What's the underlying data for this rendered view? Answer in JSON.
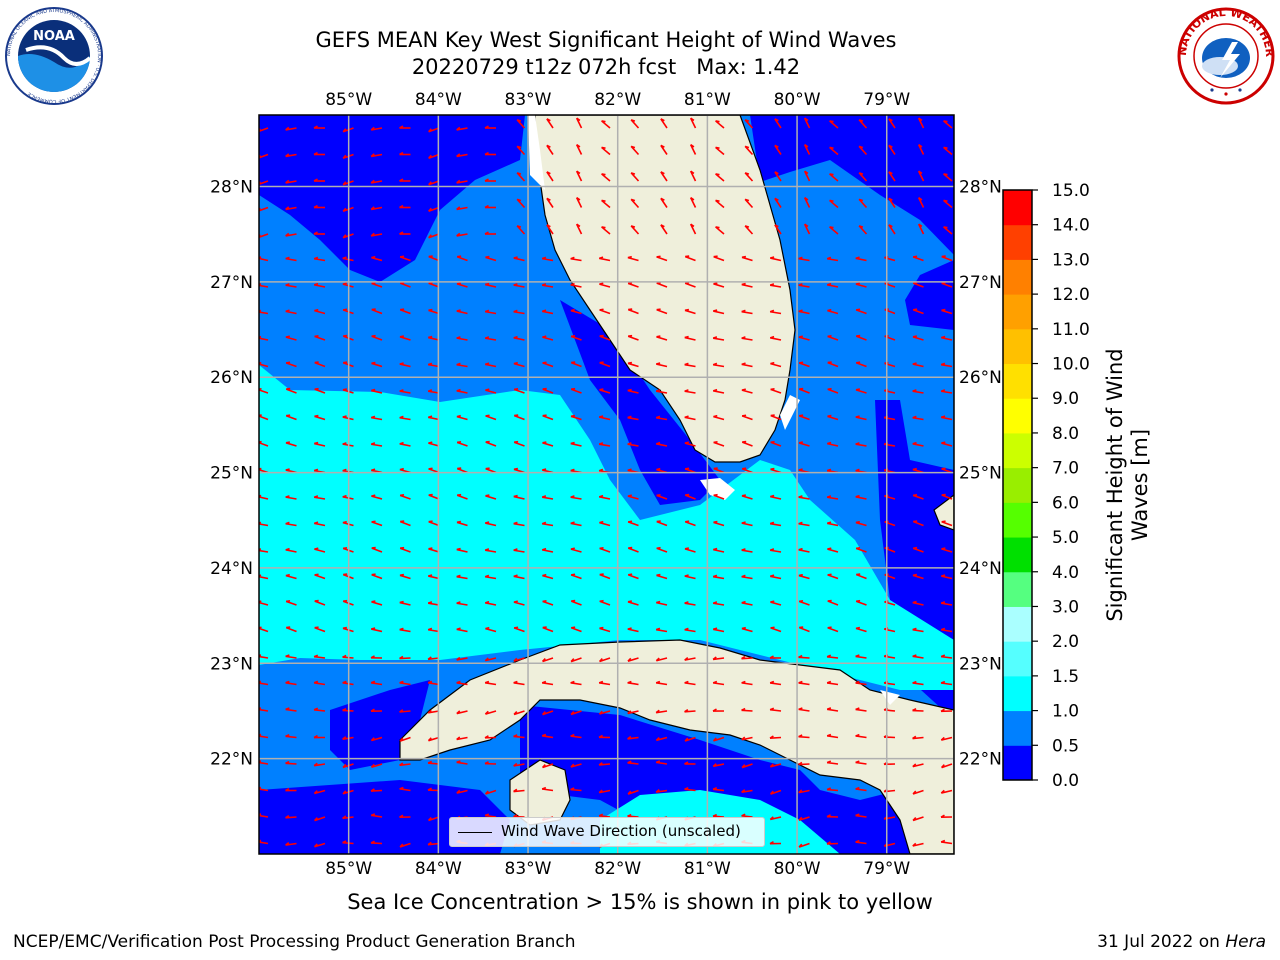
{
  "title_line1": "GEFS MEAN Key West Significant Height of Wind Waves",
  "title_line2": "20220729 t12z 072h fcst   Max: 1.42",
  "logos": {
    "left": {
      "name": "NOAA",
      "text": "NOAA",
      "ring_text": "NATIONAL OCEANIC AND ATMOSPHERIC ADMINISTRATION · U.S. DEPARTMENT OF COMMERCE"
    },
    "right": {
      "name": "National Weather Service",
      "ring_text": "NATIONAL WEATHER SERVICE"
    }
  },
  "map": {
    "lon_labels": [
      "85°W",
      "84°W",
      "83°W",
      "82°W",
      "81°W",
      "80°W",
      "79°W"
    ],
    "lat_labels": [
      "28°N",
      "27°N",
      "26°N",
      "25°N",
      "24°N",
      "23°N",
      "22°N"
    ],
    "lon_range": [
      -86.0,
      -78.25
    ],
    "lat_range": [
      21.0,
      28.75
    ],
    "land_color": "#efefdb",
    "arrow_color": "#ff0000"
  },
  "legend": {
    "label": "Wind Wave Direction (unscaled)"
  },
  "colorbar": {
    "label": "Significant Height of Wind Waves [m]",
    "ticks": [
      "0.0",
      "0.5",
      "1.0",
      "1.5",
      "2.0",
      "3.0",
      "4.0",
      "5.0",
      "6.0",
      "7.0",
      "8.0",
      "9.0",
      "10.0",
      "11.0",
      "12.0",
      "13.0",
      "14.0",
      "15.0"
    ],
    "colors": [
      "#0000ff",
      "#0080ff",
      "#00ffff",
      "#55ffff",
      "#aaffff",
      "#55ff80",
      "#00e000",
      "#55ff00",
      "#99ee00",
      "#ccff00",
      "#ffff00",
      "#ffe000",
      "#ffc000",
      "#ffa000",
      "#ff8000",
      "#ff4000",
      "#ff0000"
    ]
  },
  "sea_ice_note": "Sea Ice Concentration > 15% is shown in pink to yellow",
  "footer": {
    "left": "NCEP/EMC/Verification Post Processing Product Generation Branch",
    "right_date": "31 Jul 2022 on ",
    "right_host": "Hera"
  }
}
